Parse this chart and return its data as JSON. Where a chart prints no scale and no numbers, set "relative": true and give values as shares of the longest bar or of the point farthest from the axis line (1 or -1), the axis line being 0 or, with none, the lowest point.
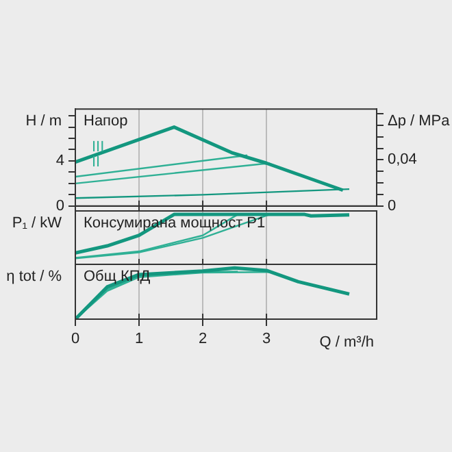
{
  "chart_data": [
    {
      "type": "line",
      "title": "Напор",
      "ylabel": "H / m",
      "y2label": "Δp / MPa",
      "xlim": [
        0,
        4.73
      ],
      "xticks": [
        0,
        1,
        2,
        3
      ],
      "ylim": [
        0,
        8.6
      ],
      "yticks": [
        0,
        {
          "value": 1,
          "label": null
        },
        {
          "value": 2,
          "label": null
        },
        {
          "value": 3,
          "label": null
        },
        4,
        {
          "value": 5,
          "label": null
        },
        {
          "value": 6,
          "label": null
        },
        {
          "value": 7,
          "label": null
        },
        {
          "value": 8,
          "label": null
        }
      ],
      "y2lim": [
        0,
        0.084
      ],
      "y2ticks": [
        0,
        {
          "value": 0.01,
          "label": null
        },
        {
          "value": 0.02,
          "label": null
        },
        {
          "value": 0.03,
          "label": null
        },
        {
          "value": 0.04,
          "label": "0,04"
        },
        {
          "value": 0.05,
          "label": null
        },
        {
          "value": 0.06,
          "label": null
        },
        {
          "value": 0.07,
          "label": null
        },
        {
          "value": 0.08,
          "label": null
        }
      ],
      "grid": "x",
      "tick_labels": "y",
      "legend": false,
      "annotations": [
        "III",
        "II"
      ],
      "series": [
        {
          "color": "#13977f",
          "x": [
            0,
            1.55,
            2.47,
            3.0,
            3.6,
            4.2
          ],
          "values": [
            3.9,
            7.0,
            4.7,
            3.8,
            2.6,
            1.4
          ]
        },
        {
          "color": "#2fb095",
          "x": [
            0,
            2.7
          ],
          "values": [
            2.6,
            4.5
          ]
        },
        {
          "color": "#2fb095",
          "x": [
            0,
            3.05
          ],
          "values": [
            2.0,
            3.8
          ]
        },
        {
          "color": "#13977f",
          "x": [
            0,
            2.0,
            4.3
          ],
          "values": [
            0.7,
            1.0,
            1.5
          ]
        }
      ]
    },
    {
      "type": "line",
      "title": "Консумирана мощност P1",
      "ylabel": "P₁ / kW",
      "relative": true,
      "xlim": [
        0,
        4.73
      ],
      "xticks": [
        0,
        1,
        2,
        3
      ],
      "grid": "x",
      "tick_labels": false,
      "legend": false,
      "series": [
        {
          "color": "#13977f",
          "x": [
            0,
            0.5,
            1,
            1.55,
            3.6,
            3.7,
            4.3
          ],
          "values": [
            0.23,
            0.37,
            0.58,
            1,
            1,
            0.97,
            0.99
          ]
        },
        {
          "color": "#2fb095",
          "x": [
            0,
            1,
            2,
            2.55
          ],
          "values": [
            0.13,
            0.26,
            0.58,
            1
          ]
        },
        {
          "color": "#2fb095",
          "x": [
            0,
            1,
            2,
            3.05
          ],
          "values": [
            0.12,
            0.24,
            0.53,
            1
          ]
        }
      ]
    },
    {
      "type": "line",
      "title": "Общ КПД",
      "ylabel": "η tot / %",
      "xlabel": "Q / m³/h",
      "relative": true,
      "xlim": [
        0,
        4.73
      ],
      "xticks": [
        0,
        1,
        2,
        3
      ],
      "grid": "x",
      "legend": false,
      "series": [
        {
          "color": "#13977f",
          "x": [
            0,
            0.5,
            1,
            2,
            2.5,
            3,
            3.5,
            4.3
          ],
          "values": [
            0,
            0.63,
            0.87,
            0.94,
            1,
            0.95,
            0.73,
            0.49
          ]
        },
        {
          "color": "#2fb095",
          "x": [
            0,
            0.5,
            1,
            2,
            2.55
          ],
          "values": [
            0,
            0.58,
            0.84,
            0.92,
            0.93
          ]
        },
        {
          "color": "#2fb095",
          "x": [
            0,
            0.5,
            1,
            2,
            3.05
          ],
          "values": [
            0,
            0.55,
            0.82,
            0.91,
            0.92
          ]
        }
      ]
    }
  ]
}
